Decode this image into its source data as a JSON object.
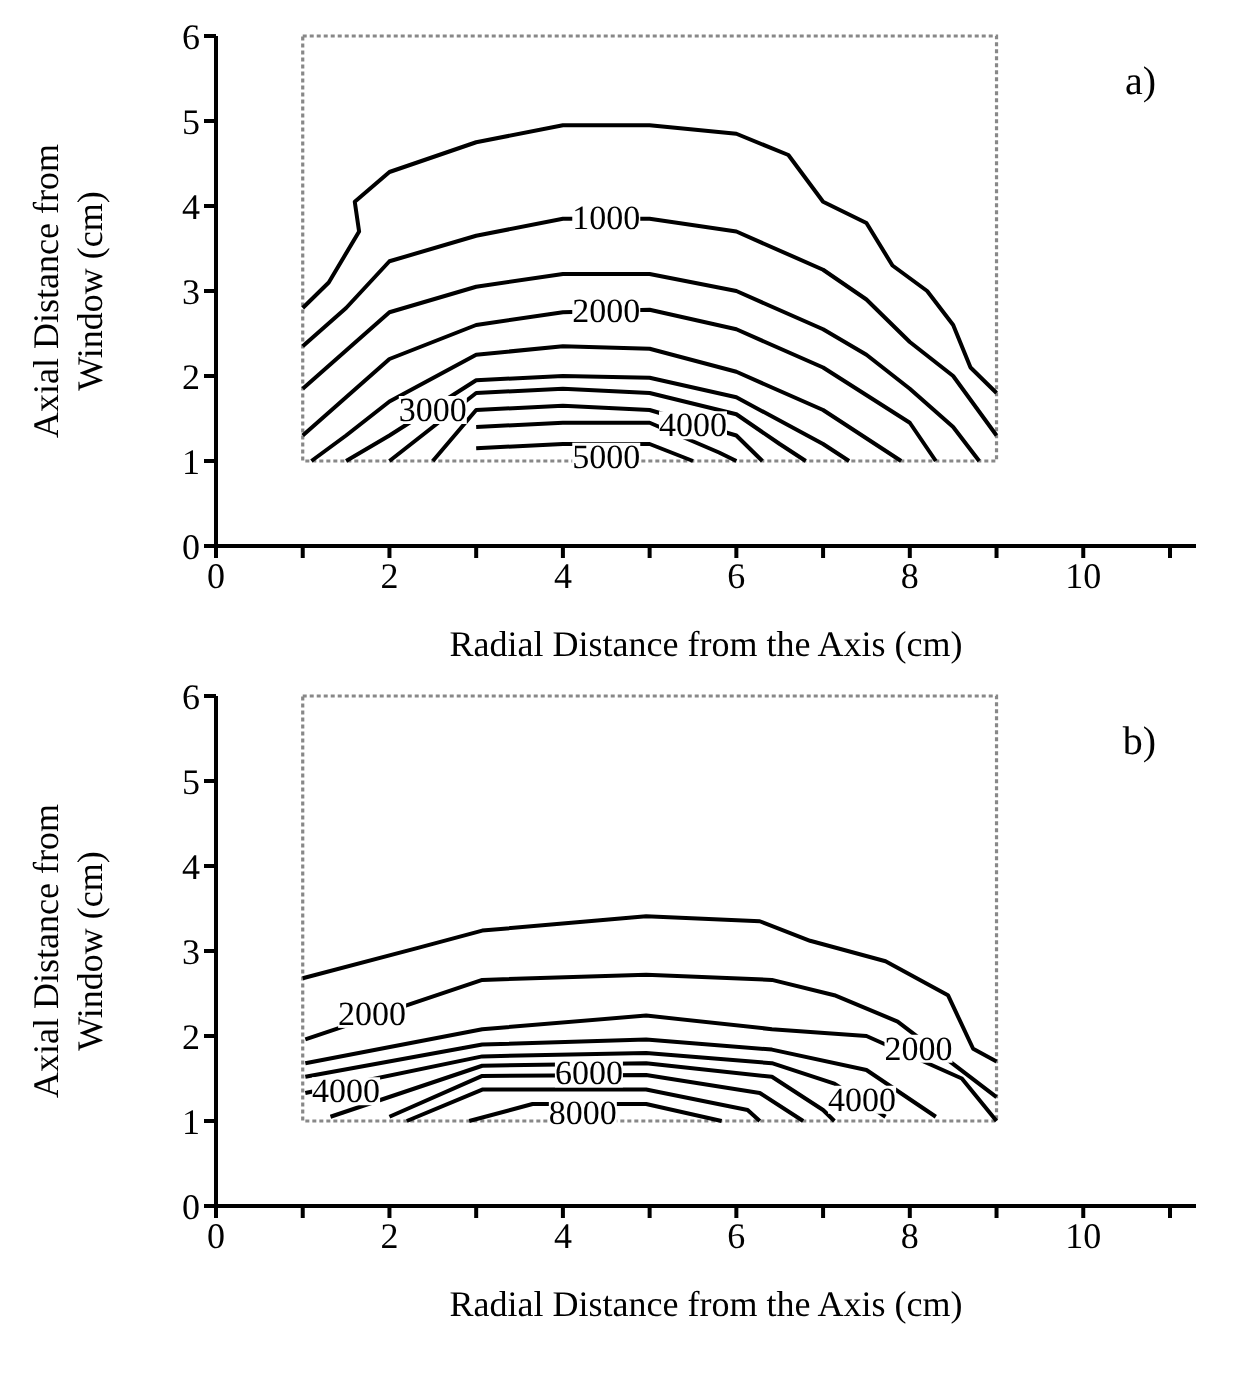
{
  "chart_data": [
    {
      "type": "line",
      "xlabel": "Radial Distance from the Axis (cm)",
      "ylabel": "Axial Distance from\nWindow (cm)",
      "xlim": [
        0,
        11.3
      ],
      "ylim": [
        0,
        6
      ],
      "xticks": [
        0,
        {
          "value": 1,
          "label": null
        },
        2,
        {
          "value": 3,
          "label": null
        },
        4,
        {
          "value": 5,
          "label": null
        },
        6,
        {
          "value": 7,
          "label": null
        },
        8,
        {
          "value": 9,
          "label": null
        },
        10,
        {
          "value": 11,
          "label": null
        }
      ],
      "yticks": [
        0,
        1,
        2,
        3,
        4,
        5,
        6
      ],
      "grid": false,
      "legend": false,
      "marker": "none",
      "line_style": "solid",
      "series": [
        {
          "color": "#000000",
          "x": [
            1,
            1.3,
            1.65,
            1.6,
            2,
            3,
            4,
            5,
            6,
            6.6,
            7,
            7.5,
            7.8,
            8.2,
            8.5,
            8.7,
            9
          ],
          "values": [
            2.8,
            3.1,
            3.7,
            4.05,
            4.4,
            4.75,
            4.95,
            4.95,
            4.85,
            4.6,
            4.05,
            3.8,
            3.3,
            3.0,
            2.6,
            2.1,
            1.8
          ]
        },
        {
          "color": "#000000",
          "x": [
            1,
            1.5,
            2,
            3,
            4,
            5,
            6,
            7,
            7.5,
            8,
            8.5,
            9
          ],
          "values": [
            2.35,
            2.8,
            3.35,
            3.65,
            3.85,
            3.85,
            3.7,
            3.25,
            2.9,
            2.4,
            2.0,
            1.3
          ]
        },
        {
          "color": "#000000",
          "x": [
            1,
            1.5,
            2,
            3,
            4,
            5,
            6,
            7,
            7.5,
            8,
            8.5,
            8.8
          ],
          "values": [
            1.85,
            2.3,
            2.75,
            3.05,
            3.2,
            3.2,
            3.0,
            2.55,
            2.25,
            1.85,
            1.4,
            1.0
          ]
        },
        {
          "color": "#000000",
          "x": [
            1,
            1.5,
            2,
            3,
            4,
            5,
            6,
            7,
            8,
            8.3
          ],
          "values": [
            1.3,
            1.75,
            2.2,
            2.6,
            2.75,
            2.78,
            2.55,
            2.1,
            1.45,
            1.0
          ]
        },
        {
          "color": "#000000",
          "x": [
            1.1,
            1.5,
            2,
            3,
            4,
            5,
            6,
            7,
            7.9
          ],
          "values": [
            1.0,
            1.3,
            1.7,
            2.25,
            2.35,
            2.32,
            2.05,
            1.6,
            1.0
          ]
        },
        {
          "color": "#000000",
          "x": [
            1.5,
            2,
            3,
            4,
            5,
            6,
            7,
            7.3
          ],
          "values": [
            1.0,
            1.3,
            1.95,
            2.0,
            1.98,
            1.75,
            1.2,
            1.0
          ]
        },
        {
          "color": "#000000",
          "x": [
            2,
            3,
            4,
            5,
            6,
            6.5,
            6.8
          ],
          "values": [
            1.0,
            1.8,
            1.85,
            1.8,
            1.55,
            1.2,
            1.0
          ]
        },
        {
          "color": "#000000",
          "x": [
            2.5,
            3,
            4,
            5,
            6,
            6.3
          ],
          "values": [
            1.0,
            1.6,
            1.65,
            1.6,
            1.3,
            1.0
          ]
        },
        {
          "color": "#000000",
          "x": [
            3,
            4,
            5,
            5.8,
            6
          ],
          "values": [
            1.4,
            1.45,
            1.45,
            1.1,
            1.0
          ]
        },
        {
          "color": "#000000",
          "x": [
            3,
            4,
            5,
            5.5
          ],
          "values": [
            1.15,
            1.2,
            1.2,
            1.0
          ]
        }
      ],
      "annotations": [
        "a)",
        {
          "text": "1000",
          "x": 4.5,
          "y": 3.86
        },
        {
          "text": "2000",
          "x": 4.5,
          "y": 2.77
        },
        {
          "text": "3000",
          "x": 2.5,
          "y": 1.6
        },
        {
          "text": "4000",
          "x": 5.5,
          "y": 1.42
        },
        {
          "text": "5000",
          "x": 4.5,
          "y": 1.05
        }
      ]
    },
    {
      "type": "line",
      "xlabel": "Radial Distance from the Axis (cm)",
      "ylabel": "Axial Distance from\nWindow (cm)",
      "xlim": [
        0,
        11.3
      ],
      "ylim": [
        0,
        6
      ],
      "xticks": [
        0,
        {
          "value": 1,
          "label": null
        },
        2,
        {
          "value": 3,
          "label": null
        },
        4,
        {
          "value": 5,
          "label": null
        },
        6,
        {
          "value": 7,
          "label": null
        },
        8,
        {
          "value": 9,
          "label": null
        },
        10,
        {
          "value": 11,
          "label": null
        }
      ],
      "yticks": [
        0,
        1,
        2,
        3,
        4,
        5,
        6
      ],
      "grid": false,
      "legend": false,
      "marker": "none",
      "line_style": "solid",
      "series": [
        {
          "color": "#000000",
          "x": [
            1.0,
            2.34,
            3.07,
            4.96,
            6.27,
            6.85,
            7.72,
            8.44,
            8.73,
            9.0
          ],
          "values": [
            2.68,
            3.04,
            3.24,
            3.41,
            3.35,
            3.12,
            2.88,
            2.48,
            1.85,
            1.7
          ]
        },
        {
          "color": "#000000",
          "x": [
            1.03,
            3.07,
            4.96,
            6.41,
            7.13,
            7.86,
            9.0
          ],
          "values": [
            1.96,
            2.66,
            2.72,
            2.66,
            2.48,
            2.17,
            1.28
          ]
        },
        {
          "color": "#000000",
          "x": [
            1.03,
            3.07,
            4.96,
            6.41,
            7.5,
            8.6,
            9.0
          ],
          "values": [
            1.68,
            2.08,
            2.24,
            2.08,
            2.0,
            1.5,
            1.0
          ]
        },
        {
          "color": "#000000",
          "x": [
            1.03,
            3.07,
            4.96,
            6.41,
            7.5,
            8.3
          ],
          "values": [
            1.52,
            1.9,
            1.96,
            1.84,
            1.6,
            1.05
          ]
        },
        {
          "color": "#000000",
          "x": [
            1.03,
            3.07,
            4.96,
            6.41,
            7.13,
            7.72
          ],
          "values": [
            1.33,
            1.76,
            1.8,
            1.68,
            1.44,
            1.05
          ]
        },
        {
          "color": "#000000",
          "x": [
            1.32,
            3.07,
            4.96,
            6.41,
            7.0,
            7.13
          ],
          "values": [
            1.05,
            1.65,
            1.68,
            1.52,
            1.13,
            1.0
          ]
        },
        {
          "color": "#000000",
          "x": [
            2.0,
            3.07,
            4.96,
            6.27,
            6.77
          ],
          "values": [
            1.05,
            1.53,
            1.54,
            1.33,
            1.0
          ]
        },
        {
          "color": "#000000",
          "x": [
            2.2,
            3.07,
            4.96,
            6.13,
            6.27
          ],
          "values": [
            1.0,
            1.37,
            1.37,
            1.13,
            1.0
          ]
        },
        {
          "color": "#000000",
          "x": [
            2.92,
            3.65,
            4.96,
            5.83
          ],
          "values": [
            1.0,
            1.2,
            1.2,
            1.0
          ]
        }
      ],
      "annotations": [
        "b)",
        {
          "text": "2000",
          "x": 1.8,
          "y": 2.26
        },
        {
          "text": "4000",
          "x": 1.5,
          "y": 1.35
        },
        {
          "text": "6000",
          "x": 4.3,
          "y": 1.56
        },
        {
          "text": "8000",
          "x": 4.23,
          "y": 1.09
        },
        {
          "text": "2000",
          "x": 8.1,
          "y": 1.85
        },
        {
          "text": "4000",
          "x": 7.45,
          "y": 1.25
        }
      ]
    }
  ]
}
